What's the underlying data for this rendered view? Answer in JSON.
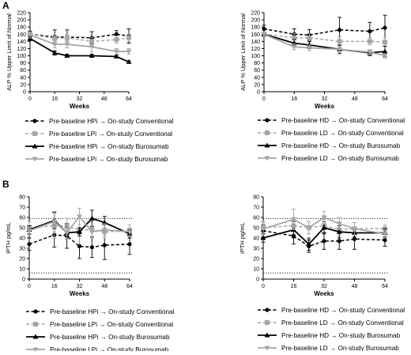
{
  "figure": {
    "panel_a_letter": "A",
    "panel_b_letter": "B"
  },
  "chart_data": [
    {
      "id": "A-left",
      "type": "line",
      "panel": "A",
      "xlabel": "Weeks",
      "ylabel": "ALP % Upper Limit of Normal",
      "xlim": [
        0,
        64
      ],
      "ylim": [
        0,
        220
      ],
      "xticks": [
        0,
        16,
        32,
        48,
        64
      ],
      "yticks": [
        0,
        20,
        40,
        60,
        80,
        100,
        120,
        140,
        160,
        180,
        200,
        220
      ],
      "reference_lines": [],
      "series": [
        {
          "name": "Pre-baseline HPi → On-study Conventional",
          "color": "#000000",
          "dash": "dashed",
          "marker": "circle",
          "x": [
            0,
            16,
            24,
            40,
            56,
            64
          ],
          "y": [
            160,
            152,
            152,
            150,
            160,
            155
          ],
          "err": [
            8,
            20,
            20,
            17,
            10,
            20
          ]
        },
        {
          "name": "Pre-baseline LPi → On-study Conventional",
          "color": "#a6a6a6",
          "dash": "dashed",
          "marker": "square",
          "x": [
            0,
            16,
            24,
            40,
            56,
            64
          ],
          "y": [
            160,
            148,
            150,
            140,
            145,
            150
          ],
          "err": [
            6,
            10,
            10,
            12,
            10,
            10
          ]
        },
        {
          "name": "Pre-baseline HPi → On-study Burosumab",
          "color": "#000000",
          "dash": "solid",
          "marker": "triangle-up",
          "x": [
            0,
            16,
            24,
            40,
            56,
            64
          ],
          "y": [
            148,
            108,
            100,
            100,
            98,
            83
          ],
          "err": [
            6,
            6,
            4,
            4,
            4,
            3
          ]
        },
        {
          "name": "Pre-baseline LPi → On-study Burosumab",
          "color": "#a6a6a6",
          "dash": "solid",
          "marker": "triangle-down",
          "x": [
            0,
            16,
            24,
            40,
            56,
            64
          ],
          "y": [
            158,
            132,
            132,
            125,
            112,
            112
          ],
          "err": [
            8,
            10,
            10,
            14,
            8,
            8
          ]
        }
      ]
    },
    {
      "id": "A-right",
      "type": "line",
      "panel": "A",
      "xlabel": "Weeks",
      "ylabel": "ALP % Upper Limit of Normal",
      "xlim": [
        0,
        64
      ],
      "ylim": [
        0,
        220
      ],
      "xticks": [
        0,
        16,
        32,
        48,
        64
      ],
      "yticks": [
        0,
        20,
        40,
        60,
        80,
        100,
        120,
        140,
        160,
        180,
        200,
        220
      ],
      "reference_lines": [],
      "series": [
        {
          "name": "Pre-baseline HD → On-study Conventional",
          "color": "#000000",
          "dash": "dashed",
          "marker": "circle",
          "x": [
            0,
            16,
            24,
            40,
            56,
            64
          ],
          "y": [
            175,
            160,
            158,
            172,
            168,
            178
          ],
          "err": [
            10,
            15,
            15,
            35,
            25,
            35
          ]
        },
        {
          "name": "Pre-baseline LD → On-study Conventional",
          "color": "#a6a6a6",
          "dash": "dashed",
          "marker": "square",
          "x": [
            0,
            16,
            24,
            40,
            56,
            64
          ],
          "y": [
            160,
            150,
            150,
            140,
            140,
            138
          ],
          "err": [
            6,
            12,
            12,
            12,
            10,
            12
          ]
        },
        {
          "name": "Pre-baseline HD → On-study Burosumab",
          "color": "#000000",
          "dash": "solid",
          "marker": "triangle-up",
          "x": [
            0,
            16,
            24,
            40,
            56,
            64
          ],
          "y": [
            160,
            135,
            130,
            118,
            108,
            112
          ],
          "err": [
            6,
            10,
            10,
            12,
            8,
            15
          ]
        },
        {
          "name": "Pre-baseline LD → On-study Burosumab",
          "color": "#a6a6a6",
          "dash": "solid",
          "marker": "triangle-down",
          "x": [
            0,
            16,
            24,
            40,
            56,
            64
          ],
          "y": [
            160,
            125,
            122,
            118,
            110,
            100
          ],
          "err": [
            6,
            8,
            8,
            8,
            6,
            6
          ]
        }
      ]
    },
    {
      "id": "B-left",
      "type": "line",
      "panel": "B",
      "xlabel": "Weeks",
      "ylabel": "iPTH pg/mL",
      "xlim": [
        0,
        64
      ],
      "ylim": [
        0,
        80
      ],
      "xticks": [
        0,
        16,
        32,
        48,
        64
      ],
      "yticks": [
        0,
        10,
        20,
        30,
        40,
        50,
        60,
        70,
        80
      ],
      "reference_lines": [
        6,
        59
      ],
      "series": [
        {
          "name": "Pre-baseline HPi → On-study Conventional",
          "color": "#000000",
          "dash": "dashed",
          "marker": "circle",
          "x": [
            0,
            16,
            24,
            32,
            40,
            48,
            64
          ],
          "y": [
            34,
            43,
            42,
            32,
            31,
            33,
            34
          ],
          "err": [
            6,
            12,
            12,
            12,
            10,
            14,
            10
          ]
        },
        {
          "name": "Pre-baseline LPi → On-study Conventional",
          "color": "#a6a6a6",
          "dash": "dashed",
          "marker": "square",
          "x": [
            0,
            16,
            24,
            32,
            40,
            48,
            64
          ],
          "y": [
            50,
            52,
            51,
            48,
            48,
            46,
            47
          ],
          "err": [
            6,
            12,
            8,
            14,
            8,
            6,
            6
          ]
        },
        {
          "name": "Pre-baseline HPi → On-study Burosumab",
          "color": "#000000",
          "dash": "solid",
          "marker": "triangle-up",
          "x": [
            0,
            16,
            24,
            32,
            40,
            48,
            64
          ],
          "y": [
            48,
            57,
            45,
            46,
            59,
            55,
            44
          ],
          "err": [
            4,
            8,
            6,
            4,
            8,
            6,
            4
          ]
        },
        {
          "name": "Pre-baseline LPi → On-study Burosumab",
          "color": "#a6a6a6",
          "dash": "solid",
          "marker": "triangle-down",
          "x": [
            0,
            16,
            24,
            32,
            40,
            48,
            64
          ],
          "y": [
            47,
            56,
            45,
            61,
            46,
            48,
            46
          ],
          "err": [
            4,
            10,
            6,
            8,
            6,
            6,
            4
          ]
        }
      ]
    },
    {
      "id": "B-right",
      "type": "line",
      "panel": "B",
      "xlabel": "Weeks",
      "ylabel": "iPTH pg/mL",
      "xlim": [
        0,
        64
      ],
      "ylim": [
        0,
        80
      ],
      "xticks": [
        0,
        16,
        32,
        48,
        64
      ],
      "yticks": [
        0,
        10,
        20,
        30,
        40,
        50,
        60,
        70,
        80
      ],
      "reference_lines": [
        6,
        59
      ],
      "series": [
        {
          "name": "Pre-baseline HD → On-study Conventional",
          "color": "#000000",
          "dash": "dashed",
          "marker": "circle",
          "x": [
            0,
            16,
            24,
            32,
            40,
            48,
            64
          ],
          "y": [
            47,
            42,
            32,
            37,
            37,
            39,
            38
          ],
          "err": [
            6,
            8,
            6,
            8,
            8,
            10,
            6
          ]
        },
        {
          "name": "Pre-baseline LD → On-study Conventional",
          "color": "#a6a6a6",
          "dash": "dashed",
          "marker": "square",
          "x": [
            0,
            16,
            24,
            32,
            40,
            48,
            64
          ],
          "y": [
            50,
            52,
            50,
            52,
            48,
            49,
            49
          ],
          "err": [
            6,
            8,
            6,
            6,
            6,
            6,
            4
          ]
        },
        {
          "name": "Pre-baseline HD → On-study Burosumab",
          "color": "#000000",
          "dash": "solid",
          "marker": "triangle-up",
          "x": [
            0,
            16,
            24,
            32,
            40,
            48,
            64
          ],
          "y": [
            40,
            48,
            34,
            50,
            46,
            45,
            45
          ],
          "err": [
            4,
            8,
            6,
            6,
            6,
            4,
            4
          ]
        },
        {
          "name": "Pre-baseline LD → On-study Burosumab",
          "color": "#a6a6a6",
          "dash": "solid",
          "marker": "triangle-down",
          "x": [
            0,
            16,
            24,
            32,
            40,
            48,
            64
          ],
          "y": [
            49,
            58,
            50,
            60,
            54,
            49,
            44
          ],
          "err": [
            6,
            10,
            6,
            6,
            6,
            6,
            4
          ]
        }
      ]
    }
  ]
}
